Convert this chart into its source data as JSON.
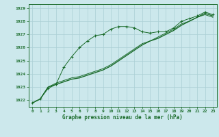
{
  "title": "Graphe pression niveau de la mer (hPa)",
  "bg_color": "#cce8ec",
  "grid_color": "#aacfd4",
  "line_color": "#1a6b2a",
  "x_labels": [
    "0",
    "1",
    "2",
    "3",
    "4",
    "5",
    "6",
    "7",
    "8",
    "9",
    "10",
    "11",
    "12",
    "13",
    "14",
    "15",
    "16",
    "17",
    "18",
    "19",
    "20",
    "21",
    "22",
    "23"
  ],
  "ylim": [
    1021.5,
    1029.3
  ],
  "yticks": [
    1022,
    1023,
    1024,
    1025,
    1026,
    1027,
    1028,
    1029
  ],
  "series_marker": [
    1021.8,
    1022.1,
    1022.9,
    1023.2,
    1024.5,
    1025.3,
    1026.0,
    1026.5,
    1026.9,
    1027.0,
    1027.4,
    1027.6,
    1027.6,
    1027.5,
    1027.2,
    1027.1,
    1027.2,
    1027.2,
    1027.5,
    1028.0,
    1028.2,
    1028.4,
    1028.7,
    1028.5
  ],
  "series_solid1": [
    1021.8,
    1022.1,
    1023.0,
    1023.2,
    1023.4,
    1023.6,
    1023.7,
    1023.9,
    1024.1,
    1024.3,
    1024.6,
    1025.0,
    1025.4,
    1025.8,
    1026.2,
    1026.5,
    1026.7,
    1027.0,
    1027.3,
    1027.7,
    1028.0,
    1028.3,
    1028.6,
    1028.4
  ],
  "series_solid2": [
    1021.8,
    1022.1,
    1023.0,
    1023.3,
    1023.5,
    1023.7,
    1023.8,
    1024.0,
    1024.2,
    1024.4,
    1024.7,
    1025.1,
    1025.5,
    1025.9,
    1026.3,
    1026.5,
    1026.8,
    1027.1,
    1027.4,
    1027.8,
    1028.0,
    1028.3,
    1028.5,
    1028.3
  ]
}
